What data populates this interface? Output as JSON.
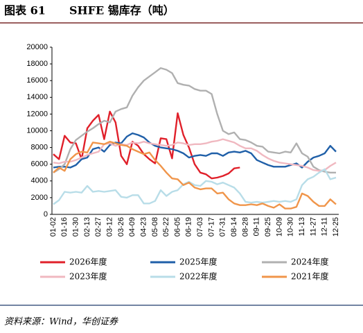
{
  "chart_data": {
    "type": "line",
    "figure_label": "图表 61",
    "title": "SHFE 锡库存（吨）",
    "source": "资料来源：Wind，华创证券",
    "categories": [
      "01-02",
      null,
      "01-16",
      null,
      "01-30",
      null,
      "02-13",
      null,
      "02-27",
      null,
      "03-12",
      null,
      "03-26",
      null,
      "04-09",
      null,
      "04-23",
      null,
      "05-08",
      null,
      "05-22",
      null,
      "06-05",
      null,
      "06-19",
      null,
      "07-03",
      null,
      "07-17",
      null,
      "07-31",
      null,
      "08-14",
      null,
      "08-28",
      null,
      "09-11",
      null,
      "09-25",
      null,
      "10-09",
      null,
      "10-30",
      null,
      "11-13",
      null,
      "11-27",
      null,
      "12-11",
      null,
      "12-25"
    ],
    "ylim": [
      0,
      20000
    ],
    "yticks": [
      0,
      2000,
      4000,
      6000,
      8000,
      10000,
      12000,
      14000,
      16000,
      18000,
      20000
    ],
    "grid": false,
    "series": [
      {
        "name": "2026年度",
        "color": "#e0202a",
        "values": [
          7200,
          6600,
          9400,
          8600,
          8500,
          6600,
          10300,
          11200,
          11900,
          9000,
          12300,
          11000,
          7000,
          6000,
          8700,
          8200,
          7200,
          6600,
          6100,
          9100,
          9000,
          6700,
          12100,
          9500,
          8000,
          6000,
          5000,
          4800,
          4300,
          4400,
          4600,
          4900,
          5500,
          5600,
          null,
          null,
          null,
          null,
          null,
          null,
          null,
          null,
          null,
          null,
          null,
          null,
          null,
          null,
          null,
          null,
          null
        ]
      },
      {
        "name": "2025年度",
        "color": "#1f5fa8",
        "values": [
          5600,
          5700,
          5700,
          5600,
          5900,
          6600,
          6800,
          7800,
          8000,
          7500,
          8300,
          8600,
          8500,
          9300,
          9700,
          9500,
          9200,
          8600,
          8200,
          8000,
          7900,
          7800,
          7600,
          7300,
          6800,
          7000,
          7100,
          7000,
          7300,
          7300,
          7000,
          7400,
          7500,
          7400,
          7600,
          7300,
          6500,
          6200,
          5900,
          5700,
          5700,
          5700,
          5900,
          6100,
          5600,
          6300,
          6800,
          7000,
          7300,
          8200,
          7500
        ]
      },
      {
        "name": "2024年度",
        "color": "#b0b0b0",
        "values": [
          5000,
          5400,
          6000,
          7800,
          8900,
          9400,
          9900,
          10300,
          10800,
          11200,
          11000,
          12300,
          12600,
          12800,
          14200,
          15200,
          16000,
          16500,
          17000,
          17500,
          17300,
          16900,
          15700,
          15500,
          15400,
          15000,
          14800,
          14800,
          14400,
          12000,
          10000,
          9600,
          9800,
          9000,
          8900,
          8600,
          8200,
          8100,
          7500,
          7400,
          7300,
          7500,
          7400,
          8500,
          7300,
          6900,
          5700,
          5300,
          5100,
          5000,
          5000
        ]
      },
      {
        "name": "2023年度",
        "color": "#f0b8c0",
        "values": [
          6200,
          6100,
          6300,
          6300,
          6500,
          6800,
          7100,
          7300,
          7500,
          8400,
          8500,
          8200,
          8400,
          8300,
          8600,
          8500,
          8700,
          8500,
          8400,
          8300,
          8200,
          8300,
          8600,
          8500,
          8300,
          8400,
          8400,
          8500,
          8700,
          8800,
          9000,
          8800,
          8600,
          8200,
          7900,
          7900,
          7600,
          7100,
          6700,
          6400,
          6200,
          6100,
          6000,
          5900,
          5800,
          5600,
          5300,
          5200,
          5300,
          5800,
          6200
        ]
      },
      {
        "name": "2022年度",
        "color": "#b8dde8",
        "values": [
          1200,
          1700,
          2700,
          2600,
          2700,
          2600,
          3400,
          2700,
          2800,
          2700,
          2800,
          2900,
          2100,
          2000,
          2300,
          2300,
          1300,
          1300,
          1600,
          2900,
          2200,
          2700,
          2900,
          3600,
          3900,
          3500,
          3400,
          4000,
          3900,
          3600,
          3800,
          3500,
          3200,
          2500,
          1500,
          1400,
          1500,
          1400,
          1500,
          1600,
          1500,
          1600,
          1500,
          1800,
          3500,
          4200,
          4500,
          5000,
          5400,
          4200,
          4400
        ]
      },
      {
        "name": "2021年度",
        "color": "#f0954a",
        "values": [
          5000,
          5600,
          5200,
          6600,
          7200,
          7500,
          7400,
          8600,
          8500,
          8400,
          8700,
          8500,
          8300,
          8200,
          7800,
          7500,
          7200,
          7400,
          6500,
          5800,
          5000,
          4300,
          4200,
          3500,
          3800,
          3200,
          3000,
          3100,
          3100,
          2500,
          2600,
          1800,
          1300,
          1100,
          1100,
          1200,
          1100,
          1300,
          1000,
          800,
          1200,
          700,
          700,
          900,
          2500,
          2200,
          1500,
          1000,
          1000,
          1800,
          1200
        ]
      }
    ]
  }
}
